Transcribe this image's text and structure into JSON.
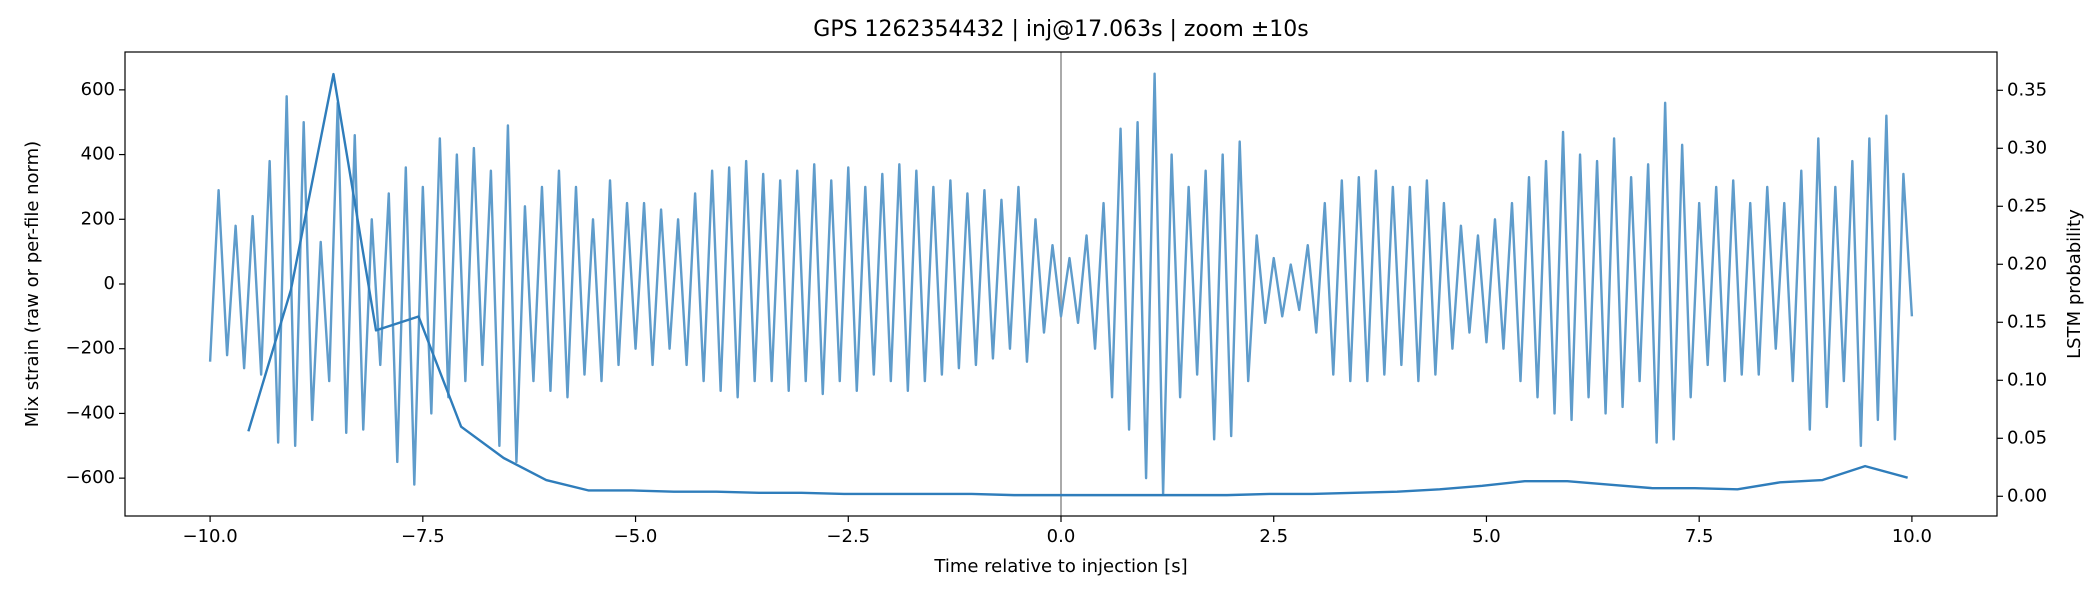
{
  "chart_data": {
    "type": "line",
    "title": "GPS 1262354432 | inj@17.063s | zoom ±10s",
    "x_label": "Time relative to injection [s]",
    "y_label": "Mix strain (raw or per-file norm)",
    "y2_label": "LSTM probability",
    "xlim": [
      -11.0,
      11.0
    ],
    "ylim": [
      -717,
      717
    ],
    "y2lim": [
      -0.017,
      0.383
    ],
    "xticks": [
      {
        "value": -10,
        "label": "−10.0"
      },
      {
        "value": -7.5,
        "label": "−7.5"
      },
      {
        "value": -5,
        "label": "−5.0"
      },
      {
        "value": -2.5,
        "label": "−2.5"
      },
      {
        "value": 0,
        "label": "0.0"
      },
      {
        "value": 2.5,
        "label": "2.5"
      },
      {
        "value": 5,
        "label": "5.0"
      },
      {
        "value": 7.5,
        "label": "7.5"
      },
      {
        "value": 10,
        "label": "10.0"
      }
    ],
    "yticks": [
      {
        "value": -600,
        "label": "−600"
      },
      {
        "value": -400,
        "label": "−400"
      },
      {
        "value": -200,
        "label": "−200"
      },
      0,
      200,
      400,
      600
    ],
    "y2ticks": [
      {
        "value": 0,
        "label": "0.00"
      },
      {
        "value": 0.05,
        "label": "0.05"
      },
      {
        "value": 0.1,
        "label": "0.10"
      },
      {
        "value": 0.15,
        "label": "0.15"
      },
      {
        "value": 0.2,
        "label": "0.20"
      },
      {
        "value": 0.25,
        "label": "0.25"
      },
      {
        "value": 0.3,
        "label": "0.30"
      },
      {
        "value": 0.35,
        "label": "0.35"
      }
    ],
    "vline": 0,
    "vline_color": "#aaaaaa",
    "series": [
      {
        "color": "#5f9ccb",
        "x": [
          -10,
          -9.9,
          -9.8,
          -9.7,
          -9.6,
          -9.5,
          -9.4,
          -9.3,
          -9.2,
          -9.1,
          -9,
          -8.9,
          -8.8,
          -8.7,
          -8.6,
          -8.5,
          -8.4,
          -8.3,
          -8.2,
          -8.1,
          -8,
          -7.9,
          -7.8,
          -7.7,
          -7.6,
          -7.5,
          -7.4,
          -7.3,
          -7.2,
          -7.1,
          -7,
          -6.9,
          -6.8,
          -6.7,
          -6.6,
          -6.5,
          -6.4,
          -6.3,
          -6.2,
          -6.1,
          -6,
          -5.9,
          -5.8,
          -5.7,
          -5.6,
          -5.5,
          -5.4,
          -5.3,
          -5.2,
          -5.1,
          -5,
          -4.9,
          -4.8,
          -4.7,
          -4.6,
          -4.5,
          -4.4,
          -4.3,
          -4.2,
          -4.1,
          -4,
          -3.9,
          -3.8,
          -3.7,
          -3.6,
          -3.5,
          -3.4,
          -3.3,
          -3.2,
          -3.1,
          -3,
          -2.9,
          -2.8,
          -2.7,
          -2.6,
          -2.5,
          -2.4,
          -2.3,
          -2.2,
          -2.1,
          -2,
          -1.9,
          -1.8,
          -1.7,
          -1.6,
          -1.5,
          -1.4,
          -1.3,
          -1.2,
          -1.1,
          -1,
          -0.9,
          -0.8,
          -0.7,
          -0.6,
          -0.5,
          -0.4,
          -0.3,
          -0.2,
          -0.1,
          0,
          0.1,
          0.2,
          0.3,
          0.4,
          0.5,
          0.6,
          0.7,
          0.8,
          0.9,
          1,
          1.1,
          1.2,
          1.3,
          1.4,
          1.5,
          1.6,
          1.7,
          1.8,
          1.9,
          2,
          2.1,
          2.2,
          2.3,
          2.4,
          2.5,
          2.6,
          2.7,
          2.8,
          2.9,
          3,
          3.1,
          3.2,
          3.3,
          3.4,
          3.5,
          3.6,
          3.7,
          3.8,
          3.9,
          4,
          4.1,
          4.2,
          4.3,
          4.4,
          4.5,
          4.6,
          4.7,
          4.8,
          4.9,
          5,
          5.1,
          5.2,
          5.3,
          5.4,
          5.5,
          5.6,
          5.7,
          5.8,
          5.9,
          6,
          6.1,
          6.2,
          6.3,
          6.4,
          6.5,
          6.6,
          6.7,
          6.8,
          6.9,
          7,
          7.1,
          7.2,
          7.3,
          7.4,
          7.5,
          7.6,
          7.7,
          7.8,
          7.9,
          8,
          8.1,
          8.2,
          8.3,
          8.4,
          8.5,
          8.6,
          8.7,
          8.8,
          8.9,
          9,
          9.1,
          9.2,
          9.3,
          9.4,
          9.5,
          9.6,
          9.7,
          9.8,
          9.9,
          10
        ],
        "values": [
          -240,
          290,
          -220,
          180,
          -260,
          210,
          -280,
          380,
          -490,
          580,
          -500,
          500,
          -420,
          130,
          -300,
          560,
          -460,
          460,
          -450,
          200,
          -250,
          280,
          -550,
          360,
          -620,
          300,
          -400,
          450,
          -350,
          400,
          -300,
          420,
          -250,
          350,
          -500,
          490,
          -550,
          240,
          -300,
          300,
          -330,
          350,
          -350,
          300,
          -280,
          200,
          -300,
          320,
          -250,
          250,
          -200,
          250,
          -250,
          230,
          -200,
          200,
          -250,
          280,
          -300,
          350,
          -330,
          360,
          -350,
          380,
          -300,
          340,
          -300,
          320,
          -330,
          350,
          -300,
          370,
          -340,
          320,
          -300,
          360,
          -330,
          300,
          -280,
          340,
          -300,
          370,
          -330,
          350,
          -300,
          300,
          -280,
          320,
          -260,
          280,
          -250,
          290,
          -230,
          260,
          -200,
          300,
          -240,
          200,
          -150,
          120,
          -100,
          80,
          -120,
          150,
          -200,
          250,
          -350,
          480,
          -450,
          500,
          -600,
          650,
          -650,
          400,
          -350,
          300,
          -280,
          350,
          -480,
          400,
          -470,
          440,
          -300,
          150,
          -120,
          80,
          -100,
          60,
          -80,
          120,
          -150,
          250,
          -280,
          320,
          -300,
          330,
          -300,
          350,
          -280,
          300,
          -250,
          300,
          -300,
          320,
          -280,
          250,
          -200,
          180,
          -150,
          150,
          -180,
          200,
          -200,
          250,
          -300,
          330,
          -350,
          380,
          -400,
          470,
          -420,
          400,
          -350,
          380,
          -400,
          450,
          -380,
          330,
          -300,
          370,
          -490,
          560,
          -480,
          430,
          -350,
          250,
          -250,
          300,
          -300,
          320,
          -280,
          250,
          -280,
          300,
          -200,
          250,
          -300,
          350,
          -450,
          450,
          -380,
          300,
          -300,
          380,
          -500,
          450,
          -420,
          520,
          -480,
          340,
          -100
        ]
      },
      {
        "color": "#2f7dbb",
        "axis": "y2",
        "x": [
          -9.55,
          -9.05,
          -8.55,
          -8.05,
          -7.55,
          -7.05,
          -6.55,
          -6.05,
          -5.55,
          -5.05,
          -4.55,
          -4.05,
          -3.55,
          -3.05,
          -2.55,
          -2.05,
          -1.55,
          -1.05,
          -0.55,
          -0.05,
          0.45,
          0.95,
          1.45,
          1.95,
          2.45,
          2.95,
          3.45,
          3.95,
          4.45,
          4.95,
          5.45,
          5.95,
          6.45,
          6.95,
          7.45,
          7.95,
          8.45,
          8.95,
          9.45,
          9.95
        ],
        "values": [
          0.056,
          0.178,
          0.364,
          0.143,
          0.155,
          0.06,
          0.033,
          0.014,
          0.005,
          0.005,
          0.004,
          0.004,
          0.003,
          0.003,
          0.002,
          0.002,
          0.002,
          0.002,
          0.001,
          0.001,
          0.001,
          0.001,
          0.001,
          0.001,
          0.002,
          0.002,
          0.003,
          0.004,
          0.006,
          0.009,
          0.013,
          0.013,
          0.01,
          0.007,
          0.007,
          0.006,
          0.012,
          0.014,
          0.026,
          0.016
        ]
      }
    ]
  }
}
